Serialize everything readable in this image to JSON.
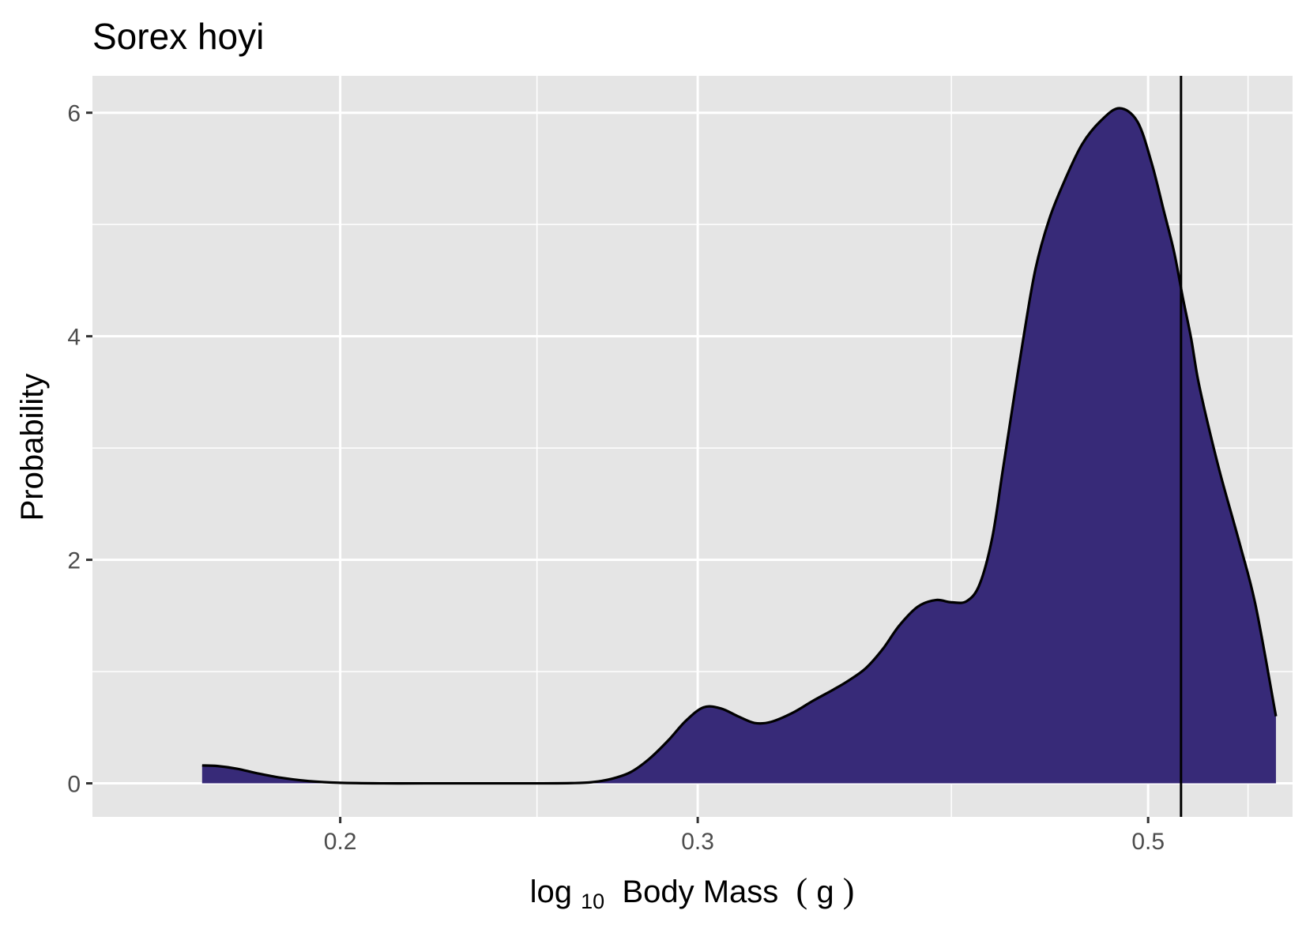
{
  "chart_data": {
    "type": "area",
    "title": "Sorex hoyi",
    "xlabel": {
      "prefix": "log",
      "subscript": "10",
      "suffix": " Body Mass ",
      "open_paren": "(",
      "unit": "g",
      "close_paren": ")"
    },
    "ylabel": "Probability",
    "xlim": [
      0.151,
      0.589
    ],
    "ylim": [
      -0.3,
      6.33
    ],
    "x_ticks": [
      0.2,
      0.3,
      0.5
    ],
    "x_tick_labels": [
      "0.2",
      "0.3",
      "0.5"
    ],
    "x_scale": "log",
    "x_minor_gridlines": [
      0.25,
      0.4,
      0.56
    ],
    "y_ticks": [
      0,
      2,
      4,
      6
    ],
    "y_tick_labels": [
      "0",
      "2",
      "4",
      "6"
    ],
    "y_minor_gridlines": [
      1,
      3,
      5
    ],
    "grid": true,
    "panel_background": "#e5e5e5",
    "grid_color": "#ffffff",
    "fill_color": "#372a78",
    "line_color": "#000000",
    "reference_line_x": 0.519,
    "series": [
      {
        "x": [
          0.171,
          0.174,
          0.178,
          0.182,
          0.187,
          0.193,
          0.2,
          0.21,
          0.22,
          0.235,
          0.25,
          0.26,
          0.266,
          0.272,
          0.278,
          0.284,
          0.29,
          0.296,
          0.302,
          0.308,
          0.314,
          0.32,
          0.326,
          0.334,
          0.342,
          0.35,
          0.356,
          0.363,
          0.37,
          0.377,
          0.385,
          0.393,
          0.4,
          0.407,
          0.413,
          0.419,
          0.424,
          0.429,
          0.434,
          0.44,
          0.447,
          0.455,
          0.464,
          0.474,
          0.484,
          0.494,
          0.502,
          0.509,
          0.515,
          0.52,
          0.525,
          0.529,
          0.535,
          0.543,
          0.555,
          0.565,
          0.578
        ],
        "y": [
          0.16,
          0.155,
          0.13,
          0.09,
          0.05,
          0.02,
          0.005,
          0.0,
          0.0,
          0.0,
          0.0,
          0.002,
          0.01,
          0.04,
          0.1,
          0.22,
          0.38,
          0.56,
          0.68,
          0.67,
          0.6,
          0.54,
          0.55,
          0.63,
          0.74,
          0.84,
          0.92,
          1.03,
          1.2,
          1.41,
          1.58,
          1.64,
          1.62,
          1.63,
          1.78,
          2.2,
          2.8,
          3.4,
          3.98,
          4.6,
          5.05,
          5.4,
          5.72,
          5.93,
          6.04,
          5.92,
          5.55,
          5.12,
          4.75,
          4.35,
          3.98,
          3.62,
          3.22,
          2.75,
          2.13,
          1.58,
          0.6
        ]
      }
    ]
  }
}
